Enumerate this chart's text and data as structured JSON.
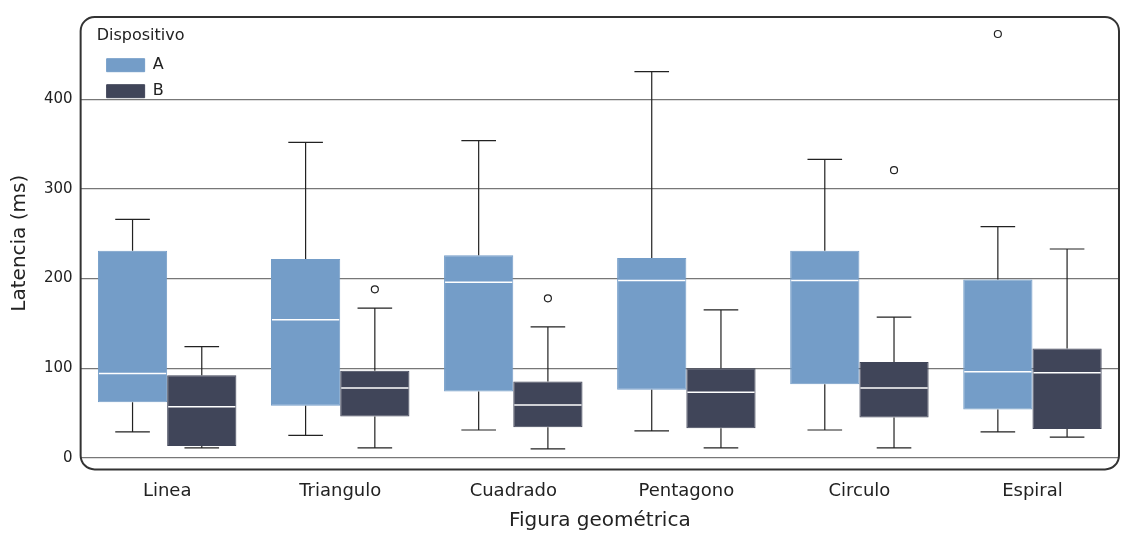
{
  "chart_data": {
    "type": "box",
    "xlabel": "Figura geométrica",
    "ylabel": "Latencia (ms)",
    "legend_title": "Dispositivo",
    "legend": "top left",
    "grid": "y",
    "categories": [
      "Linea",
      "Triangulo",
      "Cuadrado",
      "Pentagono",
      "Circulo",
      "Espiral"
    ],
    "ylim": [
      -13,
      492
    ],
    "yticks": [
      0,
      100,
      200,
      300,
      400
    ],
    "series": [
      {
        "name": "A",
        "color": "#749dc8",
        "boxes": [
          {
            "low": 29,
            "q1": 62,
            "median": 94,
            "q3": 231,
            "high": 266
          },
          {
            "low": 25,
            "q1": 58,
            "median": 154,
            "q3": 222,
            "high": 352
          },
          {
            "low": 31,
            "q1": 74,
            "median": 196,
            "q3": 226,
            "high": 354
          },
          {
            "low": 30,
            "q1": 76,
            "median": 198,
            "q3": 223,
            "high": 431
          },
          {
            "low": 31,
            "q1": 82,
            "median": 198,
            "q3": 231,
            "high": 333
          },
          {
            "low": 29,
            "q1": 54,
            "median": 96,
            "q3": 199,
            "high": 258,
            "outliers": [
              473
            ]
          }
        ]
      },
      {
        "name": "B",
        "color": "#404559",
        "boxes": [
          {
            "low": 11,
            "q1": 13,
            "median": 57,
            "q3": 92,
            "high": 124
          },
          {
            "low": 11,
            "q1": 46,
            "median": 78,
            "q3": 97,
            "high": 167,
            "outliers": [
              188
            ]
          },
          {
            "low": 10,
            "q1": 34,
            "median": 59,
            "q3": 85,
            "high": 146,
            "outliers": [
              178
            ]
          },
          {
            "low": 11,
            "q1": 33,
            "median": 73,
            "q3": 100,
            "high": 165
          },
          {
            "low": 11,
            "q1": 45,
            "median": 78,
            "q3": 107,
            "high": 157,
            "outliers": [
              321
            ]
          },
          {
            "low": 23,
            "q1": 32,
            "median": 95,
            "q3": 122,
            "high": 233
          }
        ]
      }
    ]
  }
}
